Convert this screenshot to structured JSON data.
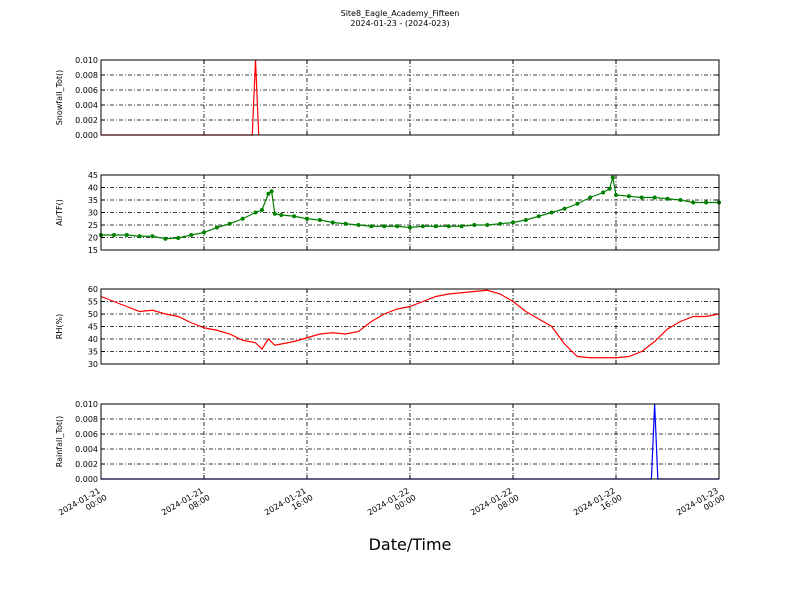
{
  "chart_data": [
    {
      "type": "line",
      "title": "Site8_Eagle_Academy_Fifteen",
      "subtitle": "2024-01-23 - (2024-023)",
      "y_label": "Snowfall_Tot()",
      "color": "#ff0000",
      "x": [
        "2024-01-21 00:00",
        "2024-01-21 01:00",
        "2024-01-21 02:00",
        "2024-01-21 03:00",
        "2024-01-21 04:00",
        "2024-01-21 05:00",
        "2024-01-21 06:00",
        "2024-01-21 07:00",
        "2024-01-21 08:00",
        "2024-01-21 09:00",
        "2024-01-21 10:00",
        "2024-01-21 11:00",
        "2024-01-21 11:45",
        "2024-01-21 12:00",
        "2024-01-21 12:15"
      ],
      "values": [
        0,
        0,
        0,
        0,
        0,
        0,
        0,
        0,
        0,
        0,
        0,
        0,
        0,
        0.01,
        0
      ],
      "xlim": [
        "2024-01-21 00:00",
        "2024-01-23 00:00"
      ],
      "ylim": [
        0,
        0.01
      ],
      "yticks": [
        {
          "value": 0,
          "label": "0.000"
        },
        {
          "value": 0.002,
          "label": "0.002"
        },
        {
          "value": 0.004,
          "label": "0.004"
        },
        {
          "value": 0.006,
          "label": "0.006"
        },
        {
          "value": 0.008,
          "label": "0.008"
        },
        {
          "value": 0.01,
          "label": "0.010"
        }
      ],
      "grid": true
    },
    {
      "type": "line",
      "y_label": "AirTF()",
      "color": "#008000",
      "marker": true,
      "x": [
        "2024-01-21 00:00",
        "2024-01-21 01:00",
        "2024-01-21 02:00",
        "2024-01-21 03:00",
        "2024-01-21 04:00",
        "2024-01-21 05:00",
        "2024-01-21 06:00",
        "2024-01-21 07:00",
        "2024-01-21 08:00",
        "2024-01-21 09:00",
        "2024-01-21 10:00",
        "2024-01-21 11:00",
        "2024-01-21 12:00",
        "2024-01-21 12:30",
        "2024-01-21 13:00",
        "2024-01-21 13:15",
        "2024-01-21 13:30",
        "2024-01-21 14:00",
        "2024-01-21 15:00",
        "2024-01-21 16:00",
        "2024-01-21 17:00",
        "2024-01-21 18:00",
        "2024-01-21 19:00",
        "2024-01-21 20:00",
        "2024-01-21 21:00",
        "2024-01-21 22:00",
        "2024-01-21 23:00",
        "2024-01-22 00:00",
        "2024-01-22 01:00",
        "2024-01-22 02:00",
        "2024-01-22 03:00",
        "2024-01-22 04:00",
        "2024-01-22 05:00",
        "2024-01-22 06:00",
        "2024-01-22 07:00",
        "2024-01-22 08:00",
        "2024-01-22 09:00",
        "2024-01-22 10:00",
        "2024-01-22 11:00",
        "2024-01-22 12:00",
        "2024-01-22 13:00",
        "2024-01-22 14:00",
        "2024-01-22 15:00",
        "2024-01-22 15:30",
        "2024-01-22 15:45",
        "2024-01-22 16:00",
        "2024-01-22 17:00",
        "2024-01-22 18:00",
        "2024-01-22 19:00",
        "2024-01-22 20:00",
        "2024-01-22 21:00",
        "2024-01-22 22:00",
        "2024-01-22 23:00",
        "2024-01-23 00:00"
      ],
      "values": [
        21,
        21,
        21,
        20.5,
        20.5,
        19.5,
        19.8,
        21,
        22,
        24,
        25.5,
        27.5,
        30,
        31,
        37.5,
        38.5,
        29.5,
        29,
        28.5,
        27.5,
        27,
        26,
        25.5,
        25,
        24.5,
        24.5,
        24.5,
        24,
        24.5,
        24.5,
        24.5,
        24.5,
        25,
        25,
        25.5,
        26,
        27,
        28.5,
        30,
        31.5,
        33.5,
        36,
        38,
        39.5,
        44,
        37,
        36.5,
        36,
        36,
        35.5,
        35,
        34,
        34,
        34
      ],
      "xlim": [
        "2024-01-21 00:00",
        "2024-01-23 00:00"
      ],
      "ylim": [
        15,
        45
      ],
      "yticks": [
        15,
        20,
        25,
        30,
        35,
        40,
        45
      ],
      "grid": true
    },
    {
      "type": "line",
      "y_label": "RH(%)",
      "color": "#ff0000",
      "x": [
        "2024-01-21 00:00",
        "2024-01-21 01:00",
        "2024-01-21 02:00",
        "2024-01-21 03:00",
        "2024-01-21 04:00",
        "2024-01-21 05:00",
        "2024-01-21 06:00",
        "2024-01-21 07:00",
        "2024-01-21 08:00",
        "2024-01-21 09:00",
        "2024-01-21 10:00",
        "2024-01-21 11:00",
        "2024-01-21 12:00",
        "2024-01-21 12:30",
        "2024-01-21 13:00",
        "2024-01-21 13:30",
        "2024-01-21 14:00",
        "2024-01-21 15:00",
        "2024-01-21 16:00",
        "2024-01-21 17:00",
        "2024-01-21 18:00",
        "2024-01-21 19:00",
        "2024-01-21 20:00",
        "2024-01-21 21:00",
        "2024-01-21 22:00",
        "2024-01-21 23:00",
        "2024-01-22 00:00",
        "2024-01-22 01:00",
        "2024-01-22 02:00",
        "2024-01-22 03:00",
        "2024-01-22 04:00",
        "2024-01-22 05:00",
        "2024-01-22 06:00",
        "2024-01-22 07:00",
        "2024-01-22 08:00",
        "2024-01-22 09:00",
        "2024-01-22 10:00",
        "2024-01-22 11:00",
        "2024-01-22 12:00",
        "2024-01-22 13:00",
        "2024-01-22 14:00",
        "2024-01-22 15:00",
        "2024-01-22 16:00",
        "2024-01-22 17:00",
        "2024-01-22 18:00",
        "2024-01-22 19:00",
        "2024-01-22 20:00",
        "2024-01-22 21:00",
        "2024-01-22 22:00",
        "2024-01-22 23:00",
        "2024-01-23 00:00"
      ],
      "values": [
        57,
        55,
        53,
        51,
        51.5,
        50,
        49,
        46.5,
        44.5,
        43.5,
        42,
        39.5,
        38.5,
        36,
        40,
        37.5,
        38,
        39,
        40.5,
        42,
        42.5,
        42,
        43,
        47,
        50,
        52,
        53,
        55,
        57,
        58,
        58.5,
        59,
        59.5,
        58,
        55,
        51,
        48,
        45,
        38,
        33,
        32.5,
        32.5,
        32.5,
        33,
        35,
        39,
        44,
        47,
        49,
        49,
        50
      ],
      "xlim": [
        "2024-01-21 00:00",
        "2024-01-23 00:00"
      ],
      "ylim": [
        30,
        60
      ],
      "yticks": [
        30,
        35,
        40,
        45,
        50,
        55,
        60
      ],
      "grid": true
    },
    {
      "type": "line",
      "y_label": "Rainfall_Tot()",
      "x_label": "Date/Time",
      "color": "#0000ff",
      "x": [
        "2024-01-21 00:00",
        "2024-01-21 01:00",
        "2024-01-21 02:00",
        "2024-01-21 03:00",
        "2024-01-21 04:00",
        "2024-01-21 05:00",
        "2024-01-21 06:00",
        "2024-01-21 07:00",
        "2024-01-21 08:00",
        "2024-01-21 09:00",
        "2024-01-21 10:00",
        "2024-01-21 11:00",
        "2024-01-21 12:00",
        "2024-01-21 13:00",
        "2024-01-21 14:00",
        "2024-01-21 15:00",
        "2024-01-21 16:00",
        "2024-01-21 17:00",
        "2024-01-21 18:00",
        "2024-01-21 19:00",
        "2024-01-21 20:00",
        "2024-01-21 21:00",
        "2024-01-21 22:00",
        "2024-01-21 23:00",
        "2024-01-22 00:00",
        "2024-01-22 01:00",
        "2024-01-22 02:00",
        "2024-01-22 03:00",
        "2024-01-22 04:00",
        "2024-01-22 05:00",
        "2024-01-22 06:00",
        "2024-01-22 07:00",
        "2024-01-22 08:00",
        "2024-01-22 09:00",
        "2024-01-22 10:00",
        "2024-01-22 11:00",
        "2024-01-22 12:00",
        "2024-01-22 13:00",
        "2024-01-22 14:00",
        "2024-01-22 15:00",
        "2024-01-22 16:00",
        "2024-01-22 17:00",
        "2024-01-22 18:00",
        "2024-01-22 18:45",
        "2024-01-22 19:00",
        "2024-01-22 19:15",
        "2024-01-22 20:00",
        "2024-01-22 21:00",
        "2024-01-22 22:00",
        "2024-01-22 23:00",
        "2024-01-23 00:00"
      ],
      "values": [
        0,
        0,
        0,
        0,
        0,
        0,
        0,
        0,
        0,
        0,
        0,
        0,
        0,
        0,
        0,
        0,
        0,
        0,
        0,
        0,
        0,
        0,
        0,
        0,
        0,
        0,
        0,
        0,
        0,
        0,
        0,
        0,
        0,
        0,
        0,
        0,
        0,
        0,
        0,
        0,
        0,
        0,
        0,
        0,
        0.01,
        0,
        0,
        0,
        0,
        0,
        0
      ],
      "xlim": [
        "2024-01-21 00:00",
        "2024-01-23 00:00"
      ],
      "ylim": [
        0,
        0.01
      ],
      "yticks": [
        {
          "value": 0,
          "label": "0.000"
        },
        {
          "value": 0.002,
          "label": "0.002"
        },
        {
          "value": 0.004,
          "label": "0.004"
        },
        {
          "value": 0.006,
          "label": "0.006"
        },
        {
          "value": 0.008,
          "label": "0.008"
        },
        {
          "value": 0.01,
          "label": "0.010"
        }
      ],
      "xticks": [
        "2024-01-21 00:00",
        "2024-01-21 08:00",
        "2024-01-21 16:00",
        "2024-01-22 00:00",
        "2024-01-22 08:00",
        "2024-01-22 16:00",
        "2024-01-23 00:00"
      ],
      "grid": true
    }
  ]
}
